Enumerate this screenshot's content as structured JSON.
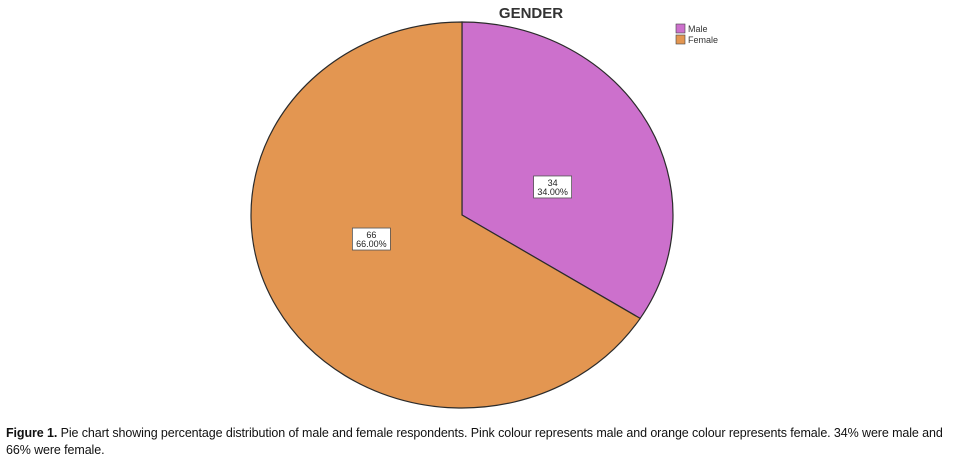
{
  "chart_data": {
    "type": "pie",
    "title": "GENDER",
    "categories": [
      "Male",
      "Female"
    ],
    "values": [
      34,
      66
    ],
    "labels": [
      {
        "count": "34",
        "percent": "34.00%"
      },
      {
        "count": "66",
        "percent": "66.00%"
      }
    ],
    "colors": [
      "#cc70cc",
      "#e39651"
    ],
    "legend_position": "top-right"
  },
  "caption": {
    "label": "Figure 1.",
    "text": "Pie chart showing percentage distribution of male and female respondents. Pink colour represents male and orange colour represents female. 34% were male and 66% were female."
  }
}
